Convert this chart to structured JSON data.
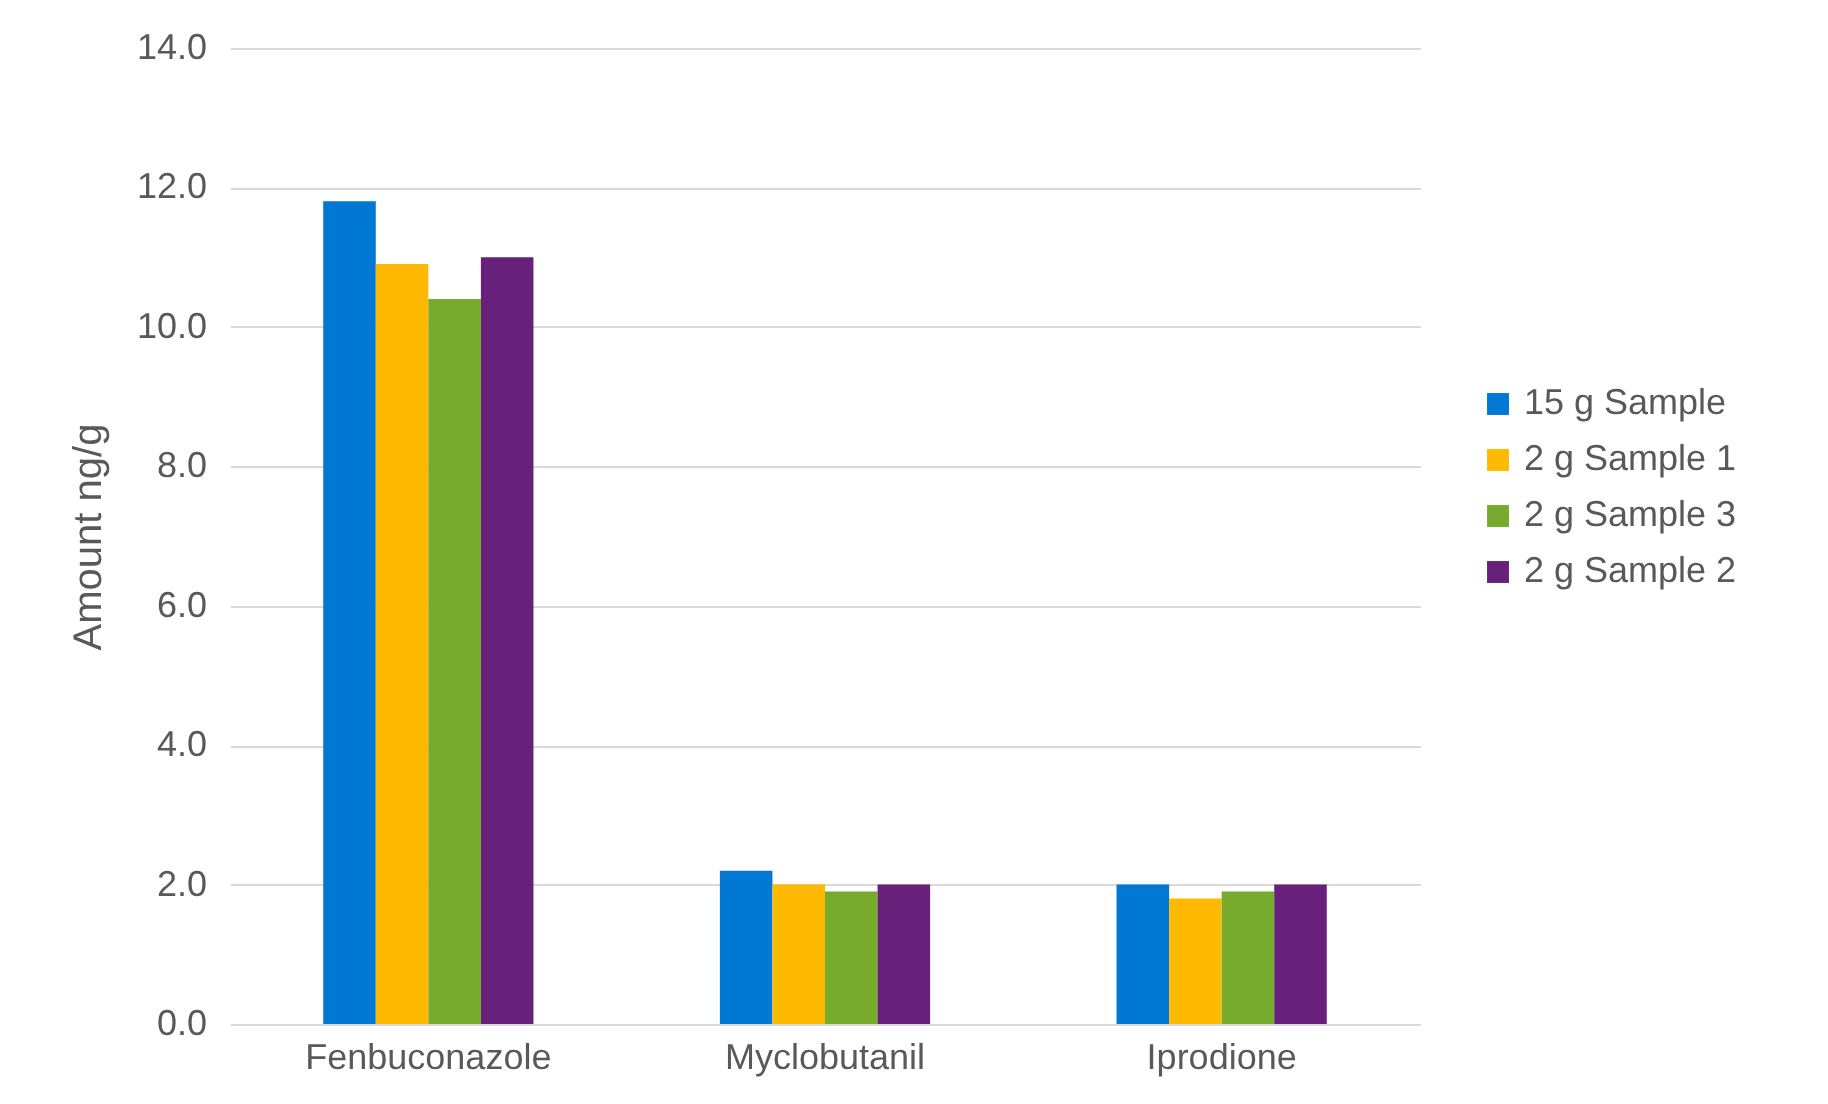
{
  "chart_data": {
    "type": "bar",
    "ylabel": "Amount ng/g",
    "categories": [
      "Fenbuconazole",
      "Myclobutanil",
      "Iprodione"
    ],
    "series": [
      {
        "name": "15 g Sample",
        "color": "#0078d4",
        "values": [
          11.8,
          2.2,
          2.0
        ]
      },
      {
        "name": "2 g Sample 1",
        "color": "#ffb900",
        "values": [
          10.9,
          2.0,
          1.8
        ]
      },
      {
        "name": "2 g Sample 3",
        "color": "#77ab2d",
        "values": [
          10.4,
          1.9,
          1.9
        ]
      },
      {
        "name": "2 g Sample 2",
        "color": "#68217a",
        "values": [
          11.0,
          2.0,
          2.0
        ]
      }
    ],
    "ylim": [
      0,
      14
    ],
    "yticks": [
      {
        "value": 0,
        "label": "0.0"
      },
      {
        "value": 2,
        "label": "2.0"
      },
      {
        "value": 4,
        "label": "4.0"
      },
      {
        "value": 6,
        "label": "6.0"
      },
      {
        "value": 8,
        "label": "8.0"
      },
      {
        "value": 10,
        "label": "10.0"
      },
      {
        "value": 12,
        "label": "12.0"
      },
      {
        "value": 14,
        "label": "14.0"
      }
    ],
    "grid": "y",
    "legend": "right"
  }
}
